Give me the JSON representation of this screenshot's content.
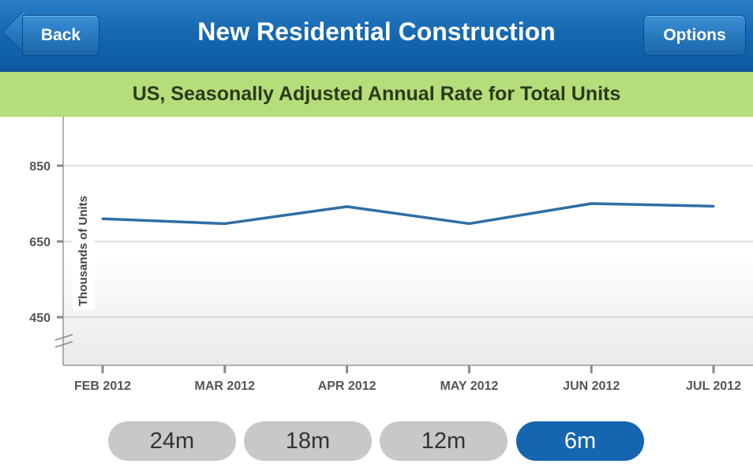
{
  "header": {
    "title": "New Residential Construction",
    "back_label": "Back",
    "options_label": "Options"
  },
  "subheader": {
    "title": "US, Seasonally Adjusted Annual Rate for Total Units"
  },
  "chart_data": {
    "type": "line",
    "title": "US, Seasonally Adjusted Annual Rate for Total Units",
    "xlabel": "",
    "ylabel": "Thousands of Units",
    "categories": [
      "FEB 2012",
      "MAR 2012",
      "APR 2012",
      "MAY 2012",
      "JUN 2012",
      "JUL 2012"
    ],
    "series": [
      {
        "values": [
          710,
          697,
          742,
          697,
          750,
          743
        ],
        "color": "#2e6ea5"
      }
    ],
    "yticks": [
      450,
      650,
      850
    ],
    "ylim": [
      380,
      980
    ],
    "axis_break": true,
    "grid": true
  },
  "range_selector": {
    "options": [
      "24m",
      "18m",
      "12m",
      "6m"
    ],
    "selected": "6m"
  },
  "colors": {
    "nav": "#1567b1",
    "subheader": "#b5dd7a",
    "line": "#2e6ea5",
    "active": "#1565b0"
  }
}
